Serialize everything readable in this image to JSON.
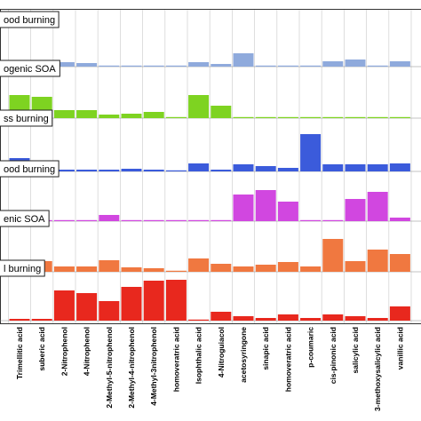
{
  "chart_data": {
    "type": "bar",
    "categories": [
      "Trimellitic acid",
      "suberic acid",
      "2-Nitrophenol",
      "4-Nitrophenol",
      "2-Methyl-5-nitrophenol",
      "2-Methyl-4-nitrophenol",
      "4-Methyl-3nitrophenol",
      "homoveratric acid",
      "Isophthalic acid",
      "4-Nitroguiacol",
      "acetosyringone",
      "sinapic acid",
      "homoveratric acid",
      "p-coumaric",
      "cis-pinonic acid",
      "salicylic acid",
      "3-methoxysalicylic acid",
      "vanillic acid"
    ],
    "grid": true,
    "series": [
      {
        "name": "ood burning",
        "color": "#8faadc",
        "values": [
          0.02,
          0.01,
          0.05,
          0.04,
          0.01,
          0.01,
          0.01,
          0.01,
          0.05,
          0.03,
          0.15,
          0.01,
          0.01,
          0.01,
          0.06,
          0.08,
          0.01,
          0.06
        ]
      },
      {
        "name": "ogenic SOA",
        "color": "#7ed321",
        "values": [
          0.26,
          0.24,
          0.09,
          0.09,
          0.04,
          0.05,
          0.07,
          0.01,
          0.26,
          0.14,
          0.01,
          0.01,
          0.01,
          0.01,
          0.01,
          0.01,
          0.01,
          0.01
        ]
      },
      {
        "name": "ss burning",
        "color": "#3b5bdb",
        "values": [
          0.15,
          0.04,
          0.02,
          0.02,
          0.02,
          0.03,
          0.02,
          0.01,
          0.09,
          0.02,
          0.08,
          0.06,
          0.04,
          0.42,
          0.08,
          0.08,
          0.08,
          0.09
        ]
      },
      {
        "name": "ood burning",
        "color": "#d147e0",
        "values": [
          0.01,
          0.01,
          0.01,
          0.01,
          0.07,
          0.01,
          0.01,
          0.01,
          0.01,
          0.01,
          0.3,
          0.35,
          0.22,
          0.01,
          0.01,
          0.25,
          0.33,
          0.04
        ]
      },
      {
        "name": "enic SOA",
        "color": "#f07840",
        "values": [
          0.02,
          0.12,
          0.06,
          0.06,
          0.13,
          0.05,
          0.04,
          0.01,
          0.15,
          0.09,
          0.06,
          0.08,
          0.11,
          0.06,
          0.37,
          0.12,
          0.25,
          0.2
        ]
      },
      {
        "name": "l burning",
        "color": "#e8281e",
        "values": [
          0.02,
          0.02,
          0.34,
          0.31,
          0.22,
          0.38,
          0.45,
          0.46,
          0.01,
          0.1,
          0.05,
          0.03,
          0.07,
          0.03,
          0.07,
          0.05,
          0.03,
          0.16
        ]
      }
    ]
  }
}
